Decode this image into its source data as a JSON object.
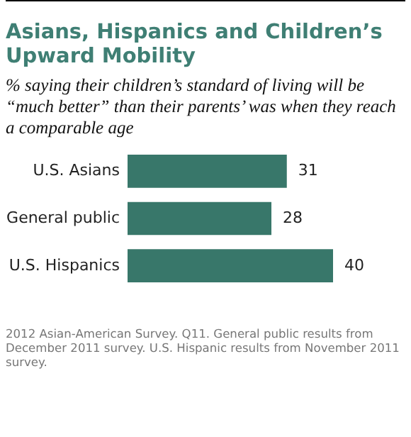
{
  "chart_data": {
    "type": "bar",
    "orientation": "horizontal",
    "title": "Asians, Hispanics and Children’s Upward Mobility",
    "subtitle": "% saying their children’s standard of living will be “much better” than their parents’ was when they reach a comparable age",
    "categories": [
      "U.S. Asians",
      "General public",
      "U.S. Hispanics"
    ],
    "values": [
      31,
      28,
      40
    ],
    "color": "#38776a",
    "data_labels": true,
    "annotations": [
      "2012 Asian-American Survey. Q11. General public results from December 2011 survey. U.S. Hispanic results from November 2011 survey."
    ]
  }
}
